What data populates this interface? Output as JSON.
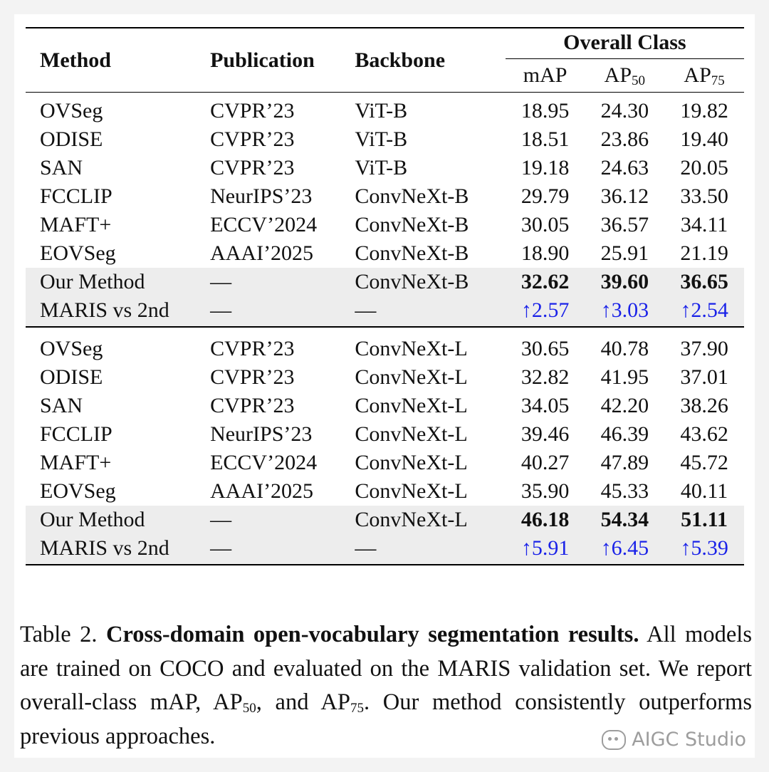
{
  "table": {
    "headers": {
      "method": "Method",
      "publication": "Publication",
      "backbone": "Backbone",
      "group": "Overall Class",
      "map": "mAP",
      "ap50_base": "AP",
      "ap50_sub": "50",
      "ap75_base": "AP",
      "ap75_sub": "75"
    },
    "groups": [
      {
        "rows": [
          {
            "method": "OVSeg",
            "publication": "CVPR’23",
            "backbone": "ViT-B",
            "map": "18.95",
            "ap50": "24.30",
            "ap75": "19.82"
          },
          {
            "method": "ODISE",
            "publication": "CVPR’23",
            "backbone": "ViT-B",
            "map": "18.51",
            "ap50": "23.86",
            "ap75": "19.40"
          },
          {
            "method": "SAN",
            "publication": "CVPR’23",
            "backbone": "ViT-B",
            "map": "19.18",
            "ap50": "24.63",
            "ap75": "20.05"
          },
          {
            "method": "FCCLIP",
            "publication": "NeurIPS’23",
            "backbone": "ConvNeXt-B",
            "map": "29.79",
            "ap50": "36.12",
            "ap75": "33.50"
          },
          {
            "method": "MAFT+",
            "publication": "ECCV’2024",
            "backbone": "ConvNeXt-B",
            "map": "30.05",
            "ap50": "36.57",
            "ap75": "34.11"
          },
          {
            "method": "EOVSeg",
            "publication": "AAAI’2025",
            "backbone": "ConvNeXt-B",
            "map": "18.90",
            "ap50": "25.91",
            "ap75": "21.19"
          }
        ],
        "ours": {
          "method": "Our Method",
          "publication": "—",
          "backbone": "ConvNeXt-B",
          "map": "32.62",
          "ap50": "39.60",
          "ap75": "36.65"
        },
        "delta": {
          "method": "MARIS vs 2nd",
          "publication": "—",
          "backbone": "—",
          "map": "↑2.57",
          "ap50": "↑3.03",
          "ap75": "↑2.54"
        }
      },
      {
        "rows": [
          {
            "method": "OVSeg",
            "publication": "CVPR’23",
            "backbone": "ConvNeXt-L",
            "map": "30.65",
            "ap50": "40.78",
            "ap75": "37.90"
          },
          {
            "method": "ODISE",
            "publication": "CVPR’23",
            "backbone": "ConvNeXt-L",
            "map": "32.82",
            "ap50": "41.95",
            "ap75": "37.01"
          },
          {
            "method": "SAN",
            "publication": "CVPR’23",
            "backbone": "ConvNeXt-L",
            "map": "34.05",
            "ap50": "42.20",
            "ap75": "38.26"
          },
          {
            "method": "FCCLIP",
            "publication": "NeurIPS’23",
            "backbone": "ConvNeXt-L",
            "map": "39.46",
            "ap50": "46.39",
            "ap75": "43.62"
          },
          {
            "method": "MAFT+",
            "publication": "ECCV’2024",
            "backbone": "ConvNeXt-L",
            "map": "40.27",
            "ap50": "47.89",
            "ap75": "45.72"
          },
          {
            "method": "EOVSeg",
            "publication": "AAAI’2025",
            "backbone": "ConvNeXt-L",
            "map": "35.90",
            "ap50": "45.33",
            "ap75": "40.11"
          }
        ],
        "ours": {
          "method": "Our Method",
          "publication": "—",
          "backbone": "ConvNeXt-L",
          "map": "46.18",
          "ap50": "54.34",
          "ap75": "51.11"
        },
        "delta": {
          "method": "MARIS vs 2nd",
          "publication": "—",
          "backbone": "—",
          "map": "↑5.91",
          "ap50": "↑6.45",
          "ap75": "↑5.39"
        }
      }
    ]
  },
  "caption": {
    "label": "Table 2.",
    "bold": "Cross-domain open-vocabulary segmentation results.",
    "text_1": "All models are trained on COCO and evaluated on the MARIS validation set. We report overall-class mAP, AP",
    "sub_1": "50",
    "text_2": ", and AP",
    "sub_2": "75",
    "text_3": ". Our method consistently outperforms previous approaches."
  },
  "watermark": {
    "text": "AIGC Studio"
  },
  "colors": {
    "delta_blue": "#1a22e8",
    "highlight_grey": "#ededed"
  }
}
